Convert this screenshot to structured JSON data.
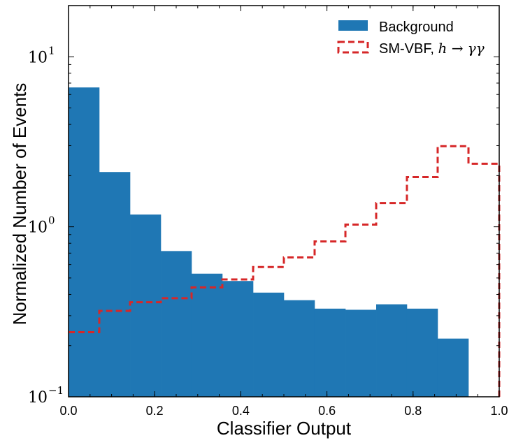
{
  "chart_data": {
    "type": "bar",
    "xlabel": "Classifier Output",
    "ylabel": "Normalized Number of Events",
    "xlim": [
      0.0,
      1.0
    ],
    "ylim": [
      0.1,
      20
    ],
    "yscale": "log",
    "bin_edges": [
      0.0,
      0.0714,
      0.1429,
      0.2143,
      0.2857,
      0.3571,
      0.4286,
      0.5,
      0.5714,
      0.6429,
      0.7143,
      0.7857,
      0.8571,
      0.9286,
      1.0
    ],
    "series": [
      {
        "name": "Background",
        "style": "filled",
        "color": "#1f77b4",
        "values": [
          6.6,
          2.1,
          1.18,
          0.72,
          0.53,
          0.48,
          0.41,
          0.37,
          0.33,
          0.325,
          0.35,
          0.33,
          0.22,
          0.0
        ]
      },
      {
        "name": "SM-VBF, h → γγ",
        "style": "step-dashed",
        "color": "#d62728",
        "values": [
          0.24,
          0.32,
          0.36,
          0.38,
          0.44,
          0.49,
          0.58,
          0.66,
          0.82,
          1.03,
          1.38,
          1.96,
          2.98,
          2.35
        ]
      }
    ],
    "xticks": [
      "0.0",
      "0.2",
      "0.4",
      "0.6",
      "0.8",
      "1.0"
    ],
    "yticks": [
      {
        "base": "10",
        "exp": "−1"
      },
      {
        "base": "10",
        "exp": "0"
      },
      {
        "base": "10",
        "exp": "1"
      }
    ],
    "legend": {
      "position": "top-right",
      "entries": [
        {
          "label": "Background"
        },
        {
          "label": "SM-VBF, ",
          "math": "h → γγ"
        }
      ]
    },
    "grid": false
  }
}
